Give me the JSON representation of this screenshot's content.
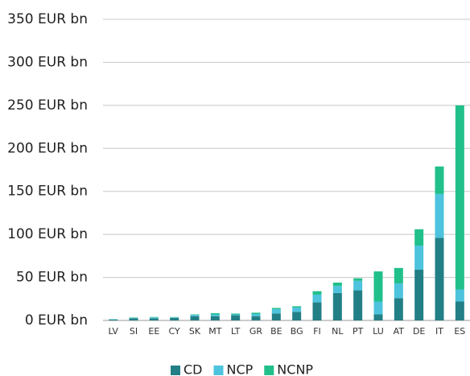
{
  "chart_data": {
    "type": "stacked_bar",
    "categories": [
      "LV",
      "SI",
      "EE",
      "CY",
      "SK",
      "MT",
      "LT",
      "GR",
      "BE",
      "BG",
      "FI",
      "NL",
      "PT",
      "LU",
      "AT",
      "DE",
      "IT",
      "ES"
    ],
    "series": [
      {
        "name": "CD",
        "color": "#237f86",
        "values": [
          1,
          2.5,
          2.5,
          3,
          5,
          5,
          6,
          5,
          8,
          10,
          21,
          32,
          35,
          7,
          26,
          59,
          96,
          22
        ]
      },
      {
        "name": "NCP",
        "color": "#4dc3de",
        "values": [
          0.3,
          0.5,
          1,
          0.5,
          1.5,
          2,
          1,
          2.5,
          5,
          5,
          9,
          8,
          11,
          15,
          17,
          28,
          51,
          14
        ]
      },
      {
        "name": "NCNP",
        "color": "#21c08b",
        "values": [
          0.2,
          0.5,
          0.5,
          0.5,
          0.5,
          1.5,
          1,
          1.5,
          1.5,
          1.5,
          4,
          4,
          3,
          35,
          18,
          19,
          32,
          214
        ]
      }
    ],
    "ylim": [
      0,
      350
    ],
    "yticks": [
      {
        "value": 0,
        "label": "0 EUR bn"
      },
      {
        "value": 50,
        "label": "50 EUR bn"
      },
      {
        "value": 100,
        "label": "100 EUR bn"
      },
      {
        "value": 150,
        "label": "150 EUR bn"
      },
      {
        "value": 200,
        "label": "200 EUR bn"
      },
      {
        "value": 250,
        "label": "250 EUR bn"
      },
      {
        "value": 300,
        "label": "300 EUR bn"
      },
      {
        "value": 350,
        "label": "350 EUR bn"
      }
    ],
    "grid": true,
    "legend": "bottom"
  }
}
